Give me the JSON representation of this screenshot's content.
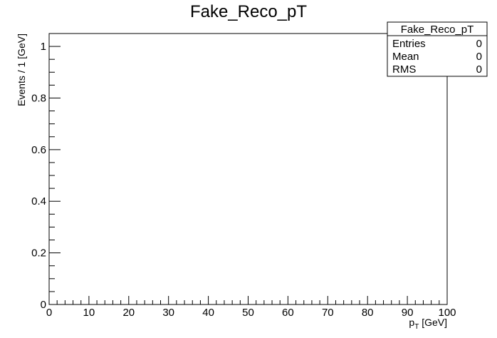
{
  "chart_data": {
    "type": "bar",
    "title": "Fake_Reco_pT",
    "xlabel": {
      "main": "p",
      "sub": "T",
      "rest": " [GeV]"
    },
    "ylabel": "Events / 1 [GeV]",
    "xlim": [
      0,
      100
    ],
    "ylim": [
      0,
      1.05
    ],
    "bin_width": 1,
    "x_tick_labels": [
      "0",
      "10",
      "20",
      "30",
      "40",
      "50",
      "60",
      "70",
      "80",
      "90",
      "100"
    ],
    "y_tick_labels": [
      "0",
      "0.2",
      "0.4",
      "0.6",
      "0.8",
      "1"
    ],
    "series": [
      {
        "values": []
      }
    ],
    "grid": false,
    "legend_position": "top-right",
    "stats_box": {
      "name": "Fake_Reco_pT",
      "rows": [
        {
          "label": "Entries",
          "value": "0"
        },
        {
          "label": "Mean",
          "value": "0"
        },
        {
          "label": "RMS",
          "value": "0"
        }
      ]
    }
  }
}
